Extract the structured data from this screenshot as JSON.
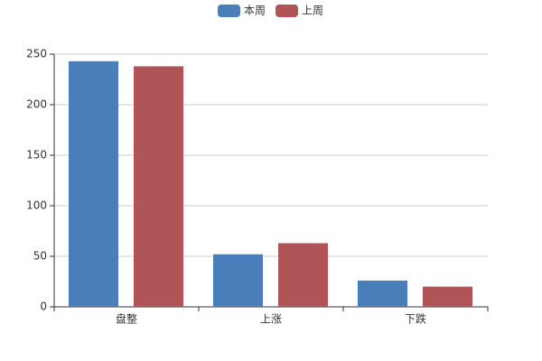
{
  "chart_data": {
    "type": "bar",
    "categories": [
      "盘整",
      "上涨",
      "下跌"
    ],
    "series": [
      {
        "name": "本周",
        "color": "#4a7ebb",
        "values": [
          243,
          52,
          26
        ]
      },
      {
        "name": "上周",
        "color": "#b05557",
        "values": [
          238,
          63,
          20
        ]
      }
    ],
    "ylim": [
      0,
      250
    ],
    "yticks": [
      0,
      50,
      100,
      150,
      200,
      250
    ],
    "grid": true,
    "legend": "top"
  }
}
